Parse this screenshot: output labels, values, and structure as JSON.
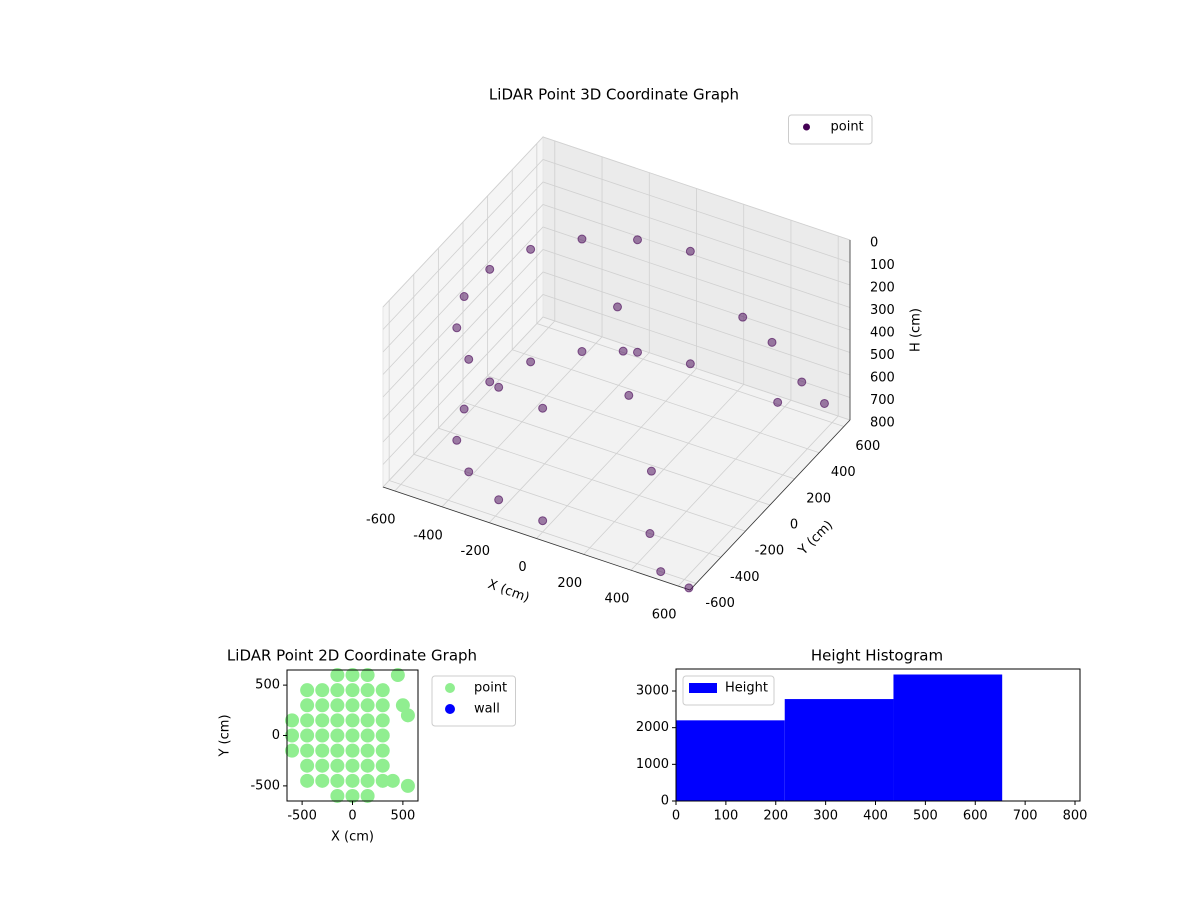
{
  "chart_data": [
    {
      "type": "scatter3d",
      "title": "LiDAR Point 3D Coordinate Graph",
      "xlabel": "X (cm)",
      "ylabel": "Y (cm)",
      "zlabel": "H (cm)",
      "xlim": [
        -650,
        650
      ],
      "ylim": [
        -650,
        650
      ],
      "zlim": [
        0,
        800
      ],
      "zinvert": true,
      "xticks": [
        -600,
        -400,
        -200,
        0,
        200,
        400,
        600
      ],
      "yticks": [
        -600,
        -400,
        -200,
        0,
        200,
        400,
        600
      ],
      "zticks": [
        0,
        100,
        200,
        300,
        400,
        500,
        600,
        700,
        800
      ],
      "grid": true,
      "legend": "upper right",
      "series": [
        {
          "name": "point",
          "color": "#440154",
          "x": [
            0,
            -205,
            -386,
            -520,
            -591,
            -591,
            -520,
            -386,
            -205,
            0,
            0,
            -205,
            -386,
            -520,
            -591,
            -591,
            -520,
            -386,
            -205,
            0,
            -100,
            -50,
            0,
            300,
            450,
            500,
            550,
            620,
            200,
            350,
            500,
            640
          ],
          "y": [
            600,
            564,
            460,
            300,
            104,
            -104,
            -300,
            -460,
            -564,
            -600,
            600,
            564,
            460,
            300,
            104,
            -104,
            -300,
            -460,
            -564,
            -600,
            200,
            150,
            100,
            450,
            400,
            350,
            450,
            500,
            -100,
            -400,
            -600,
            -640
          ],
          "z": [
            250,
            250,
            250,
            250,
            250,
            250,
            250,
            250,
            250,
            250,
            750,
            750,
            750,
            750,
            750,
            750,
            750,
            750,
            750,
            750,
            300,
            450,
            600,
            350,
            380,
            600,
            550,
            650,
            750,
            800,
            800,
            800
          ]
        }
      ]
    },
    {
      "type": "scatter",
      "title": "LiDAR Point 2D Coordinate Graph",
      "xlabel": "X (cm)",
      "ylabel": "Y (cm)",
      "xlim": [
        -650,
        650
      ],
      "ylim": [
        -650,
        650
      ],
      "xticks": [
        -500,
        0,
        500
      ],
      "yticks": [
        -500,
        0,
        500
      ],
      "legend": "outside upper right",
      "series": [
        {
          "name": "point",
          "color": "lightgreen",
          "x": [
            -600,
            -600,
            -600,
            -450,
            -450,
            -450,
            -450,
            -450,
            -450,
            -450,
            -300,
            -300,
            -300,
            -300,
            -300,
            -300,
            -300,
            -150,
            -150,
            -150,
            -150,
            -150,
            -150,
            -150,
            -150,
            -150,
            0,
            0,
            0,
            0,
            0,
            0,
            0,
            0,
            0,
            150,
            150,
            150,
            150,
            150,
            150,
            150,
            150,
            150,
            300,
            300,
            300,
            300,
            300,
            300,
            300,
            400,
            550,
            500,
            550,
            450
          ],
          "y": [
            -150,
            0,
            150,
            -450,
            -300,
            -150,
            0,
            150,
            300,
            450,
            -450,
            -300,
            -150,
            0,
            150,
            300,
            450,
            -600,
            -450,
            -300,
            -150,
            0,
            150,
            300,
            450,
            600,
            -600,
            -450,
            -300,
            -150,
            0,
            150,
            300,
            450,
            600,
            -600,
            -450,
            -300,
            -150,
            0,
            150,
            300,
            450,
            600,
            -450,
            -300,
            -150,
            0,
            150,
            300,
            450,
            -450,
            -500,
            300,
            200,
            600
          ]
        },
        {
          "name": "wall",
          "color": "blue",
          "x": [],
          "y": []
        }
      ]
    },
    {
      "type": "histogram",
      "title": "Height Histogram",
      "bins": [
        0,
        218,
        436,
        654
      ],
      "xlim": [
        0,
        810
      ],
      "ylim": [
        0,
        3600
      ],
      "xticks": [
        0,
        100,
        200,
        300,
        400,
        500,
        600,
        700,
        800
      ],
      "yticks": [
        0,
        1000,
        2000,
        3000
      ],
      "legend": "upper left",
      "series": [
        {
          "name": "Height",
          "color": "blue",
          "values": [
            2200,
            2780,
            3450
          ]
        }
      ]
    }
  ]
}
